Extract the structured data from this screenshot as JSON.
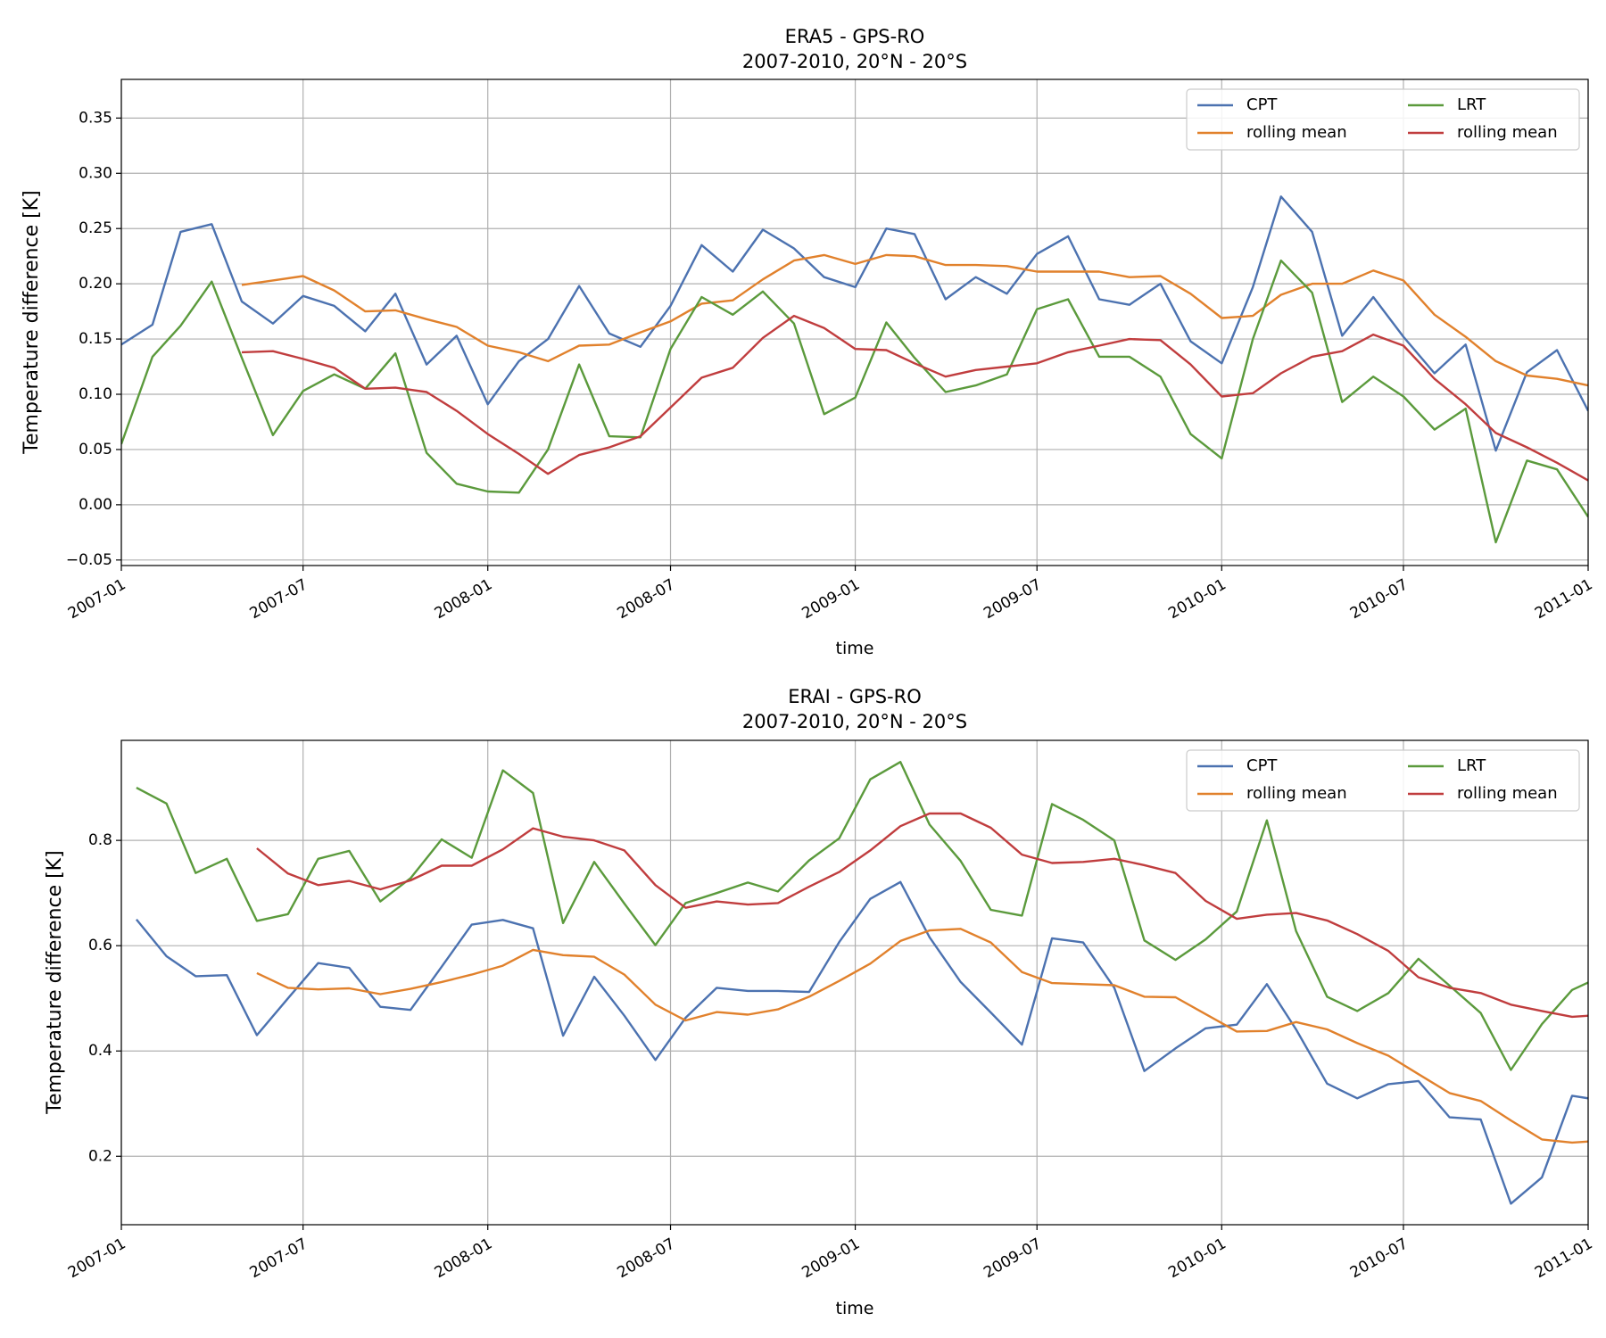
{
  "chart_data": [
    {
      "type": "line",
      "title": "ERA5 - GPS-RO",
      "subtitle": "2007-2010, 20°N - 20°S",
      "xlabel": "time",
      "ylabel": "Temperature difference [K]",
      "xlim": [
        "2007-01",
        "2011-01"
      ],
      "ylim": [
        -0.055,
        0.385
      ],
      "xticks": [
        "2007-01",
        "2007-07",
        "2008-01",
        "2008-07",
        "2009-01",
        "2009-07",
        "2010-01",
        "2010-07",
        "2011-01"
      ],
      "yticks": [
        -0.05,
        0.0,
        0.05,
        0.1,
        0.15,
        0.2,
        0.25,
        0.3,
        0.35
      ],
      "ytick_labels": [
        "−0.05",
        "0.00",
        "0.05",
        "0.10",
        "0.15",
        "0.20",
        "0.25",
        "0.30",
        "0.35"
      ],
      "grid": true,
      "legend_position": "top-right",
      "legend_columns": 2,
      "x": [
        "2007-01",
        "2007-02",
        "2007-03",
        "2007-04",
        "2007-05",
        "2007-06",
        "2007-07",
        "2007-08",
        "2007-09",
        "2007-10",
        "2007-11",
        "2007-12",
        "2008-01",
        "2008-02",
        "2008-03",
        "2008-04",
        "2008-05",
        "2008-06",
        "2008-07",
        "2008-08",
        "2008-09",
        "2008-10",
        "2008-11",
        "2008-12",
        "2009-01",
        "2009-02",
        "2009-03",
        "2009-04",
        "2009-05",
        "2009-06",
        "2009-07",
        "2009-08",
        "2009-09",
        "2009-10",
        "2009-11",
        "2009-12",
        "2010-01",
        "2010-02",
        "2010-03",
        "2010-04",
        "2010-05",
        "2010-06",
        "2010-07",
        "2010-08",
        "2010-09",
        "2010-10",
        "2010-11",
        "2010-12",
        "2011-01"
      ],
      "series": [
        {
          "name": "CPT",
          "color": "#4c72b0",
          "values": [
            0.145,
            0.163,
            0.247,
            0.254,
            0.184,
            0.164,
            0.189,
            0.18,
            0.157,
            0.191,
            0.127,
            0.153,
            0.091,
            0.13,
            0.15,
            0.198,
            0.155,
            0.143,
            0.18,
            0.235,
            0.211,
            0.249,
            0.232,
            0.206,
            0.197,
            0.25,
            0.245,
            0.186,
            0.206,
            0.191,
            0.227,
            0.243,
            0.186,
            0.181,
            0.2,
            0.148,
            0.128,
            0.197,
            0.279,
            0.247,
            0.153,
            0.188,
            0.152,
            0.119,
            0.145,
            0.049,
            0.12,
            0.14,
            0.085
          ]
        },
        {
          "name": "rolling mean",
          "color": "#e1812c",
          "values": [
            null,
            null,
            null,
            null,
            0.199,
            0.203,
            0.207,
            0.194,
            0.175,
            0.176,
            0.168,
            0.161,
            0.144,
            0.138,
            0.13,
            0.144,
            0.145,
            0.156,
            0.166,
            0.182,
            0.185,
            0.204,
            0.221,
            0.226,
            0.218,
            0.226,
            0.225,
            0.217,
            0.217,
            0.216,
            0.211,
            0.211,
            0.211,
            0.206,
            0.207,
            0.191,
            0.169,
            0.171,
            0.19,
            0.2,
            0.2,
            0.212,
            0.203,
            0.172,
            0.152,
            0.13,
            0.117,
            0.114,
            0.108
          ]
        },
        {
          "name": "LRT",
          "color": "#5b9a3c",
          "values": [
            0.055,
            0.134,
            0.162,
            0.202,
            0.133,
            0.063,
            0.103,
            0.118,
            0.105,
            0.137,
            0.047,
            0.019,
            0.012,
            0.011,
            0.05,
            0.127,
            0.062,
            0.061,
            0.141,
            0.188,
            0.172,
            0.193,
            0.164,
            0.082,
            0.097,
            0.165,
            0.133,
            0.102,
            0.108,
            0.118,
            0.177,
            0.186,
            0.134,
            0.134,
            0.116,
            0.064,
            0.042,
            0.15,
            0.221,
            0.192,
            0.093,
            0.116,
            0.098,
            0.068,
            0.087,
            -0.034,
            0.04,
            0.032,
            -0.011
          ]
        },
        {
          "name": "rolling mean",
          "color": "#c03d3e",
          "values": [
            null,
            null,
            null,
            null,
            0.138,
            0.139,
            0.132,
            0.124,
            0.105,
            0.106,
            0.102,
            0.085,
            0.064,
            0.046,
            0.028,
            0.045,
            0.052,
            0.062,
            0.088,
            0.115,
            0.124,
            0.151,
            0.171,
            0.16,
            0.141,
            0.14,
            0.128,
            0.116,
            0.122,
            0.125,
            0.128,
            0.138,
            0.144,
            0.15,
            0.149,
            0.127,
            0.098,
            0.101,
            0.119,
            0.134,
            0.139,
            0.154,
            0.144,
            0.114,
            0.091,
            0.065,
            0.052,
            0.038,
            0.022
          ]
        }
      ]
    },
    {
      "type": "line",
      "title": "ERAI - GPS-RO",
      "subtitle": "2007-2010, 20°N - 20°S",
      "xlabel": "time",
      "ylabel": "Temperature difference [K]",
      "xlim": [
        "2007-01",
        "2011-01"
      ],
      "ylim": [
        0.07,
        0.99
      ],
      "xticks": [
        "2007-01",
        "2007-07",
        "2008-01",
        "2008-07",
        "2009-01",
        "2009-07",
        "2010-01",
        "2010-07",
        "2011-01"
      ],
      "yticks": [
        0.2,
        0.4,
        0.6,
        0.8
      ],
      "ytick_labels": [
        "0.2",
        "0.4",
        "0.6",
        "0.8"
      ],
      "grid": true,
      "legend_position": "top-right",
      "legend_columns": 2,
      "x": [
        "2007-01-16",
        "2007-02-15",
        "2007-03-16",
        "2007-04-16",
        "2007-05-16",
        "2007-06-16",
        "2007-07-16",
        "2007-08-16",
        "2007-09-16",
        "2007-10-16",
        "2007-11-16",
        "2007-12-16",
        "2008-01-16",
        "2008-02-15",
        "2008-03-16",
        "2008-04-16",
        "2008-05-16",
        "2008-06-16",
        "2008-07-16",
        "2008-08-16",
        "2008-09-16",
        "2008-10-16",
        "2008-11-16",
        "2008-12-16",
        "2009-01-16",
        "2009-02-15",
        "2009-03-16",
        "2009-04-16",
        "2009-05-16",
        "2009-06-16",
        "2009-07-16",
        "2009-08-16",
        "2009-09-16",
        "2009-10-16",
        "2009-11-16",
        "2009-12-16",
        "2010-01-16",
        "2010-02-15",
        "2010-03-16",
        "2010-04-16",
        "2010-05-16",
        "2010-06-16",
        "2010-07-16",
        "2010-08-16",
        "2010-09-16",
        "2010-10-16",
        "2010-11-16",
        "2010-12-16",
        "2011-01-01"
      ],
      "series": [
        {
          "name": "CPT",
          "color": "#4c72b0",
          "values": [
            0.65,
            0.58,
            0.542,
            0.544,
            0.43,
            0.5,
            0.567,
            0.558,
            0.484,
            0.478,
            0.56,
            0.64,
            0.649,
            0.633,
            0.429,
            0.541,
            0.467,
            0.383,
            0.463,
            0.52,
            0.514,
            0.514,
            0.512,
            0.607,
            0.689,
            0.721,
            0.616,
            0.531,
            0.473,
            0.412,
            0.614,
            0.606,
            0.52,
            0.362,
            0.405,
            0.443,
            0.45,
            0.527,
            0.441,
            0.338,
            0.31,
            0.337,
            0.343,
            0.274,
            0.27,
            0.11,
            0.16,
            0.315,
            0.31
          ]
        },
        {
          "name": "rolling mean",
          "color": "#e1812c",
          "values": [
            null,
            null,
            null,
            null,
            0.548,
            0.52,
            0.517,
            0.519,
            0.508,
            0.518,
            0.531,
            0.545,
            0.562,
            0.592,
            0.582,
            0.579,
            0.545,
            0.488,
            0.458,
            0.474,
            0.469,
            0.479,
            0.503,
            0.533,
            0.566,
            0.609,
            0.629,
            0.632,
            0.606,
            0.55,
            0.529,
            0.527,
            0.525,
            0.503,
            0.502,
            0.47,
            0.437,
            0.438,
            0.455,
            0.441,
            0.415,
            0.391,
            0.356,
            0.32,
            0.305,
            0.268,
            0.232,
            0.226,
            0.228
          ]
        },
        {
          "name": "LRT",
          "color": "#5b9a3c",
          "values": [
            0.9,
            0.87,
            0.738,
            0.765,
            0.647,
            0.66,
            0.765,
            0.78,
            0.684,
            0.728,
            0.802,
            0.767,
            0.933,
            0.89,
            0.643,
            0.759,
            0.68,
            0.601,
            0.681,
            0.7,
            0.72,
            0.703,
            0.762,
            0.804,
            0.916,
            0.949,
            0.83,
            0.761,
            0.668,
            0.657,
            0.869,
            0.839,
            0.8,
            0.61,
            0.573,
            0.612,
            0.665,
            0.838,
            0.628,
            0.503,
            0.476,
            0.51,
            0.575,
            0.524,
            0.472,
            0.364,
            0.451,
            0.516,
            0.53
          ]
        },
        {
          "name": "rolling mean",
          "color": "#c03d3e",
          "values": [
            null,
            null,
            null,
            null,
            0.785,
            0.737,
            0.715,
            0.723,
            0.707,
            0.724,
            0.752,
            0.752,
            0.783,
            0.823,
            0.807,
            0.8,
            0.781,
            0.715,
            0.672,
            0.684,
            0.678,
            0.681,
            0.712,
            0.74,
            0.781,
            0.827,
            0.851,
            0.851,
            0.824,
            0.773,
            0.757,
            0.759,
            0.765,
            0.753,
            0.738,
            0.685,
            0.651,
            0.659,
            0.662,
            0.648,
            0.622,
            0.59,
            0.54,
            0.52,
            0.51,
            0.488,
            0.476,
            0.465,
            0.467
          ]
        }
      ]
    }
  ]
}
